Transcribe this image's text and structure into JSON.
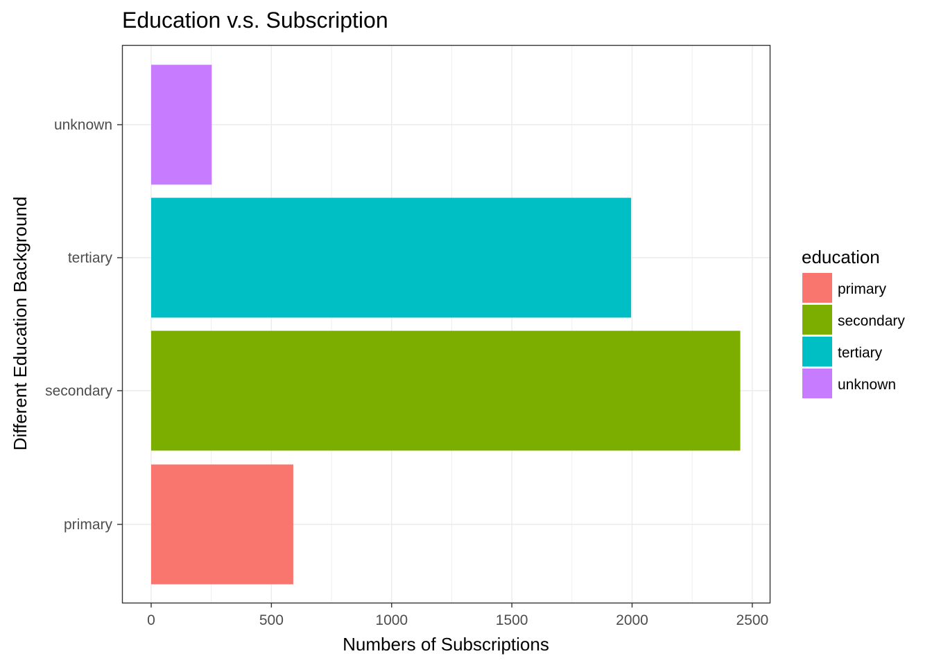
{
  "chart_data": {
    "type": "bar",
    "orientation": "horizontal",
    "title": "Education v.s. Subscription",
    "xlabel": "Numbers of Subscriptions",
    "ylabel": "Different Education Background",
    "categories": [
      "primary",
      "secondary",
      "tertiary",
      "unknown"
    ],
    "values": [
      591,
      2450,
      1996,
      252
    ],
    "colors": [
      "#F8766D",
      "#7CAE00",
      "#00BFC4",
      "#C77CFF"
    ],
    "xlim": [
      0,
      2500
    ],
    "xticks": [
      0,
      500,
      1000,
      1500,
      2000,
      2500
    ],
    "xtick_labels": [
      "0",
      "500",
      "1000",
      "1500",
      "2000",
      "2500"
    ],
    "grid": true,
    "legend": {
      "title": "education",
      "placement": "right",
      "entries": [
        "primary",
        "secondary",
        "tertiary",
        "unknown"
      ]
    }
  }
}
